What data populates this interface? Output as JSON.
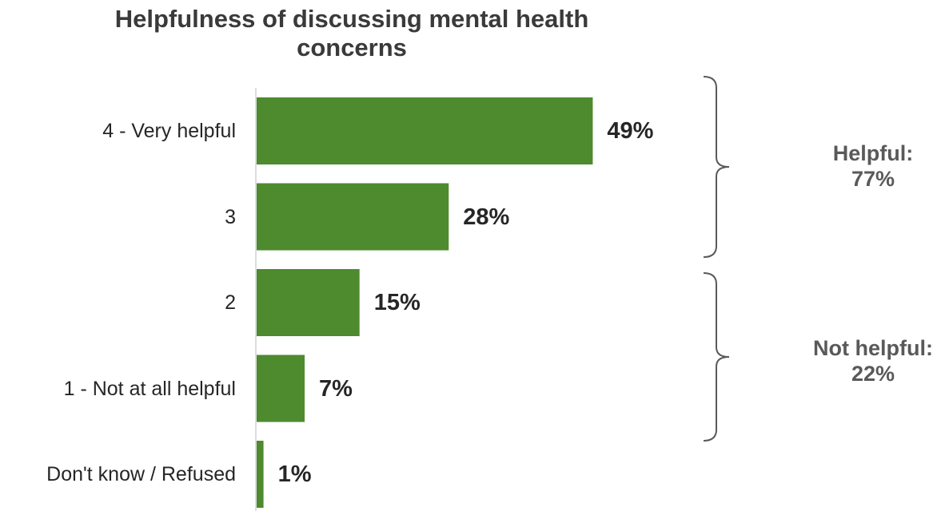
{
  "chart_data": {
    "type": "bar",
    "orientation": "horizontal",
    "title": "Helpfulness of discussing mental health concerns",
    "categories": [
      "4 - Very helpful",
      "3",
      "2",
      "1 - Not at all helpful",
      "Don't know / Refused"
    ],
    "values": [
      49,
      28,
      15,
      7,
      1
    ],
    "value_labels": [
      "49%",
      "28%",
      "15%",
      "7%",
      "1%"
    ],
    "unit": "%",
    "xlabel": "",
    "ylabel": "",
    "grid": false,
    "bar_color": "#4e8a2e",
    "groups": [
      {
        "label": "Helpful:",
        "value": "77%",
        "categories": [
          "4 - Very helpful",
          "3"
        ]
      },
      {
        "label": "Not helpful:",
        "value": "22%",
        "categories": [
          "2",
          "1 - Not at all helpful"
        ]
      }
    ]
  },
  "colors": {
    "bar": "#4e8a2e",
    "axis": "#d0d0d0",
    "bracket": "#595959",
    "group_text": "#595959"
  }
}
